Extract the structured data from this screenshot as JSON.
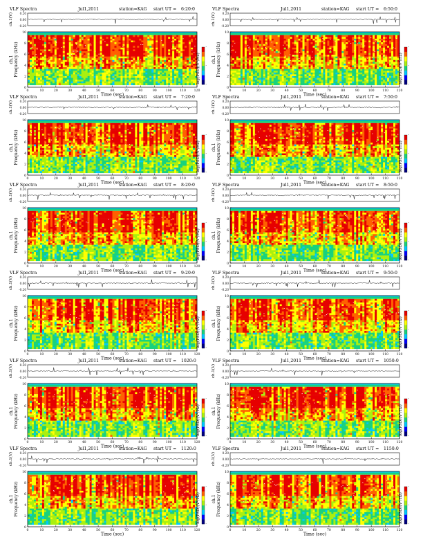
{
  "chart_data": {
    "type": "heatmap",
    "header_prefix": "VLF Spectra",
    "date": "Jul1,2011",
    "station": "station=KAG",
    "start_prefix": "start UT =",
    "trace_ylabel": "ch.1(V)",
    "trace_ticks": [
      "0.20",
      "0.00",
      "-0.20"
    ],
    "trace_ylim": [
      -0.2,
      0.2
    ],
    "spec_ylabel_1": "ch.1",
    "spec_ylabel_2": "Frequency (kHz)",
    "spec_yticks": [
      0,
      2,
      4,
      6,
      8,
      10
    ],
    "spec_ylim": [
      0,
      10
    ],
    "xlabel": "Time (sec)",
    "xticks": [
      0,
      10,
      20,
      30,
      40,
      50,
      60,
      70,
      80,
      90,
      100,
      110,
      120
    ],
    "xlim": [
      0,
      120
    ],
    "colorbar_label": "log(PSD)(V²/Hz)",
    "colormap": [
      "#00007f",
      "#0000ff",
      "#00c8ff",
      "#19d27d",
      "#aaf00f",
      "#ffff00",
      "#ff6000",
      "#e60000"
    ],
    "colorbar_labels": [
      "-",
      "-",
      "-"
    ],
    "panels": [
      {
        "start": "6:20:0"
      },
      {
        "start": "6:50:0"
      },
      {
        "start": "7:20:0"
      },
      {
        "start": "7:50:0"
      },
      {
        "start": "8:20:0"
      },
      {
        "start": "8:50:0"
      },
      {
        "start": "9:20:0"
      },
      {
        "start": "9:50:0"
      },
      {
        "start": "1020:0"
      },
      {
        "start": "1050:0"
      },
      {
        "start": "1120:0"
      },
      {
        "start": "1150:0"
      }
    ]
  }
}
